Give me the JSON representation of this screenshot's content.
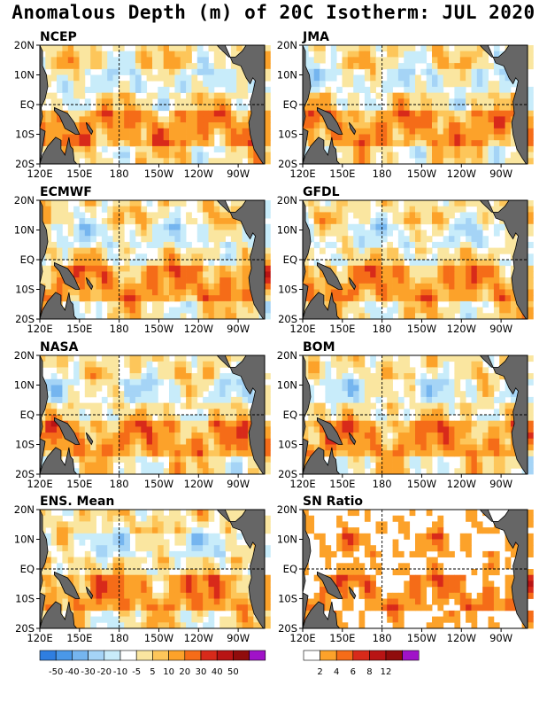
{
  "title": "Anomalous Depth (m) of 20C Isotherm: JUL 2020",
  "axes": {
    "x_ticks": [
      "120E",
      "150E",
      "180",
      "150W",
      "120W",
      "90W"
    ],
    "y_ticks": [
      "20N",
      "10N",
      "EQ",
      "10S",
      "20S"
    ],
    "x_range": [
      "120E",
      "70W"
    ],
    "y_range": [
      "20S",
      "20N"
    ]
  },
  "colors": {
    "land": "#666666",
    "anomaly_palette": [
      "#1e5fd2",
      "#2f7ee0",
      "#4a98e8",
      "#75b5ef",
      "#a5d4f6",
      "#c8ecfa",
      "#ffffff",
      "#fae6a0",
      "#fdc65a",
      "#fca22a",
      "#f56c18",
      "#d82a1a",
      "#b81414",
      "#900c0c",
      "#a012c8"
    ],
    "snr_palette": [
      "#ffffff",
      "#fca22a",
      "#f56c18",
      "#d82a1a",
      "#b81414",
      "#900c0c",
      "#a012c8"
    ]
  },
  "chart_data": [
    {
      "type": "heatmap",
      "title": "NCEP",
      "variable": "20C isotherm depth anomaly",
      "units": "m",
      "grid": "dashed lines at 180 and EQ"
    },
    {
      "type": "heatmap",
      "title": "JMA",
      "variable": "20C isotherm depth anomaly",
      "units": "m",
      "grid": "dashed lines at 180 and EQ"
    },
    {
      "type": "heatmap",
      "title": "ECMWF",
      "variable": "20C isotherm depth anomaly",
      "units": "m",
      "grid": "dashed lines at 180 and EQ"
    },
    {
      "type": "heatmap",
      "title": "GFDL",
      "variable": "20C isotherm depth anomaly",
      "units": "m",
      "grid": "dashed lines at 180 and EQ"
    },
    {
      "type": "heatmap",
      "title": "NASA",
      "variable": "20C isotherm depth anomaly",
      "units": "m",
      "grid": "dashed lines at 180 and EQ"
    },
    {
      "type": "heatmap",
      "title": "BOM",
      "variable": "20C isotherm depth anomaly",
      "units": "m",
      "grid": "dashed lines at 180 and EQ"
    },
    {
      "type": "heatmap",
      "title": "ENS. Mean",
      "variable": "20C isotherm depth anomaly",
      "units": "m",
      "grid": "dashed lines at 180 and EQ"
    },
    {
      "type": "heatmap",
      "title": "SN Ratio",
      "variable": "signal-to-noise ratio",
      "grid": "dashed lines at 180 and EQ"
    }
  ],
  "colorbars": {
    "anomaly": {
      "labels": [
        "-50",
        "-40",
        "-30",
        "-20",
        "-10",
        "-5",
        "5",
        "10",
        "20",
        "30",
        "40",
        "50"
      ]
    },
    "snr": {
      "labels": [
        "2",
        "4",
        "6",
        "8",
        "12"
      ]
    }
  }
}
